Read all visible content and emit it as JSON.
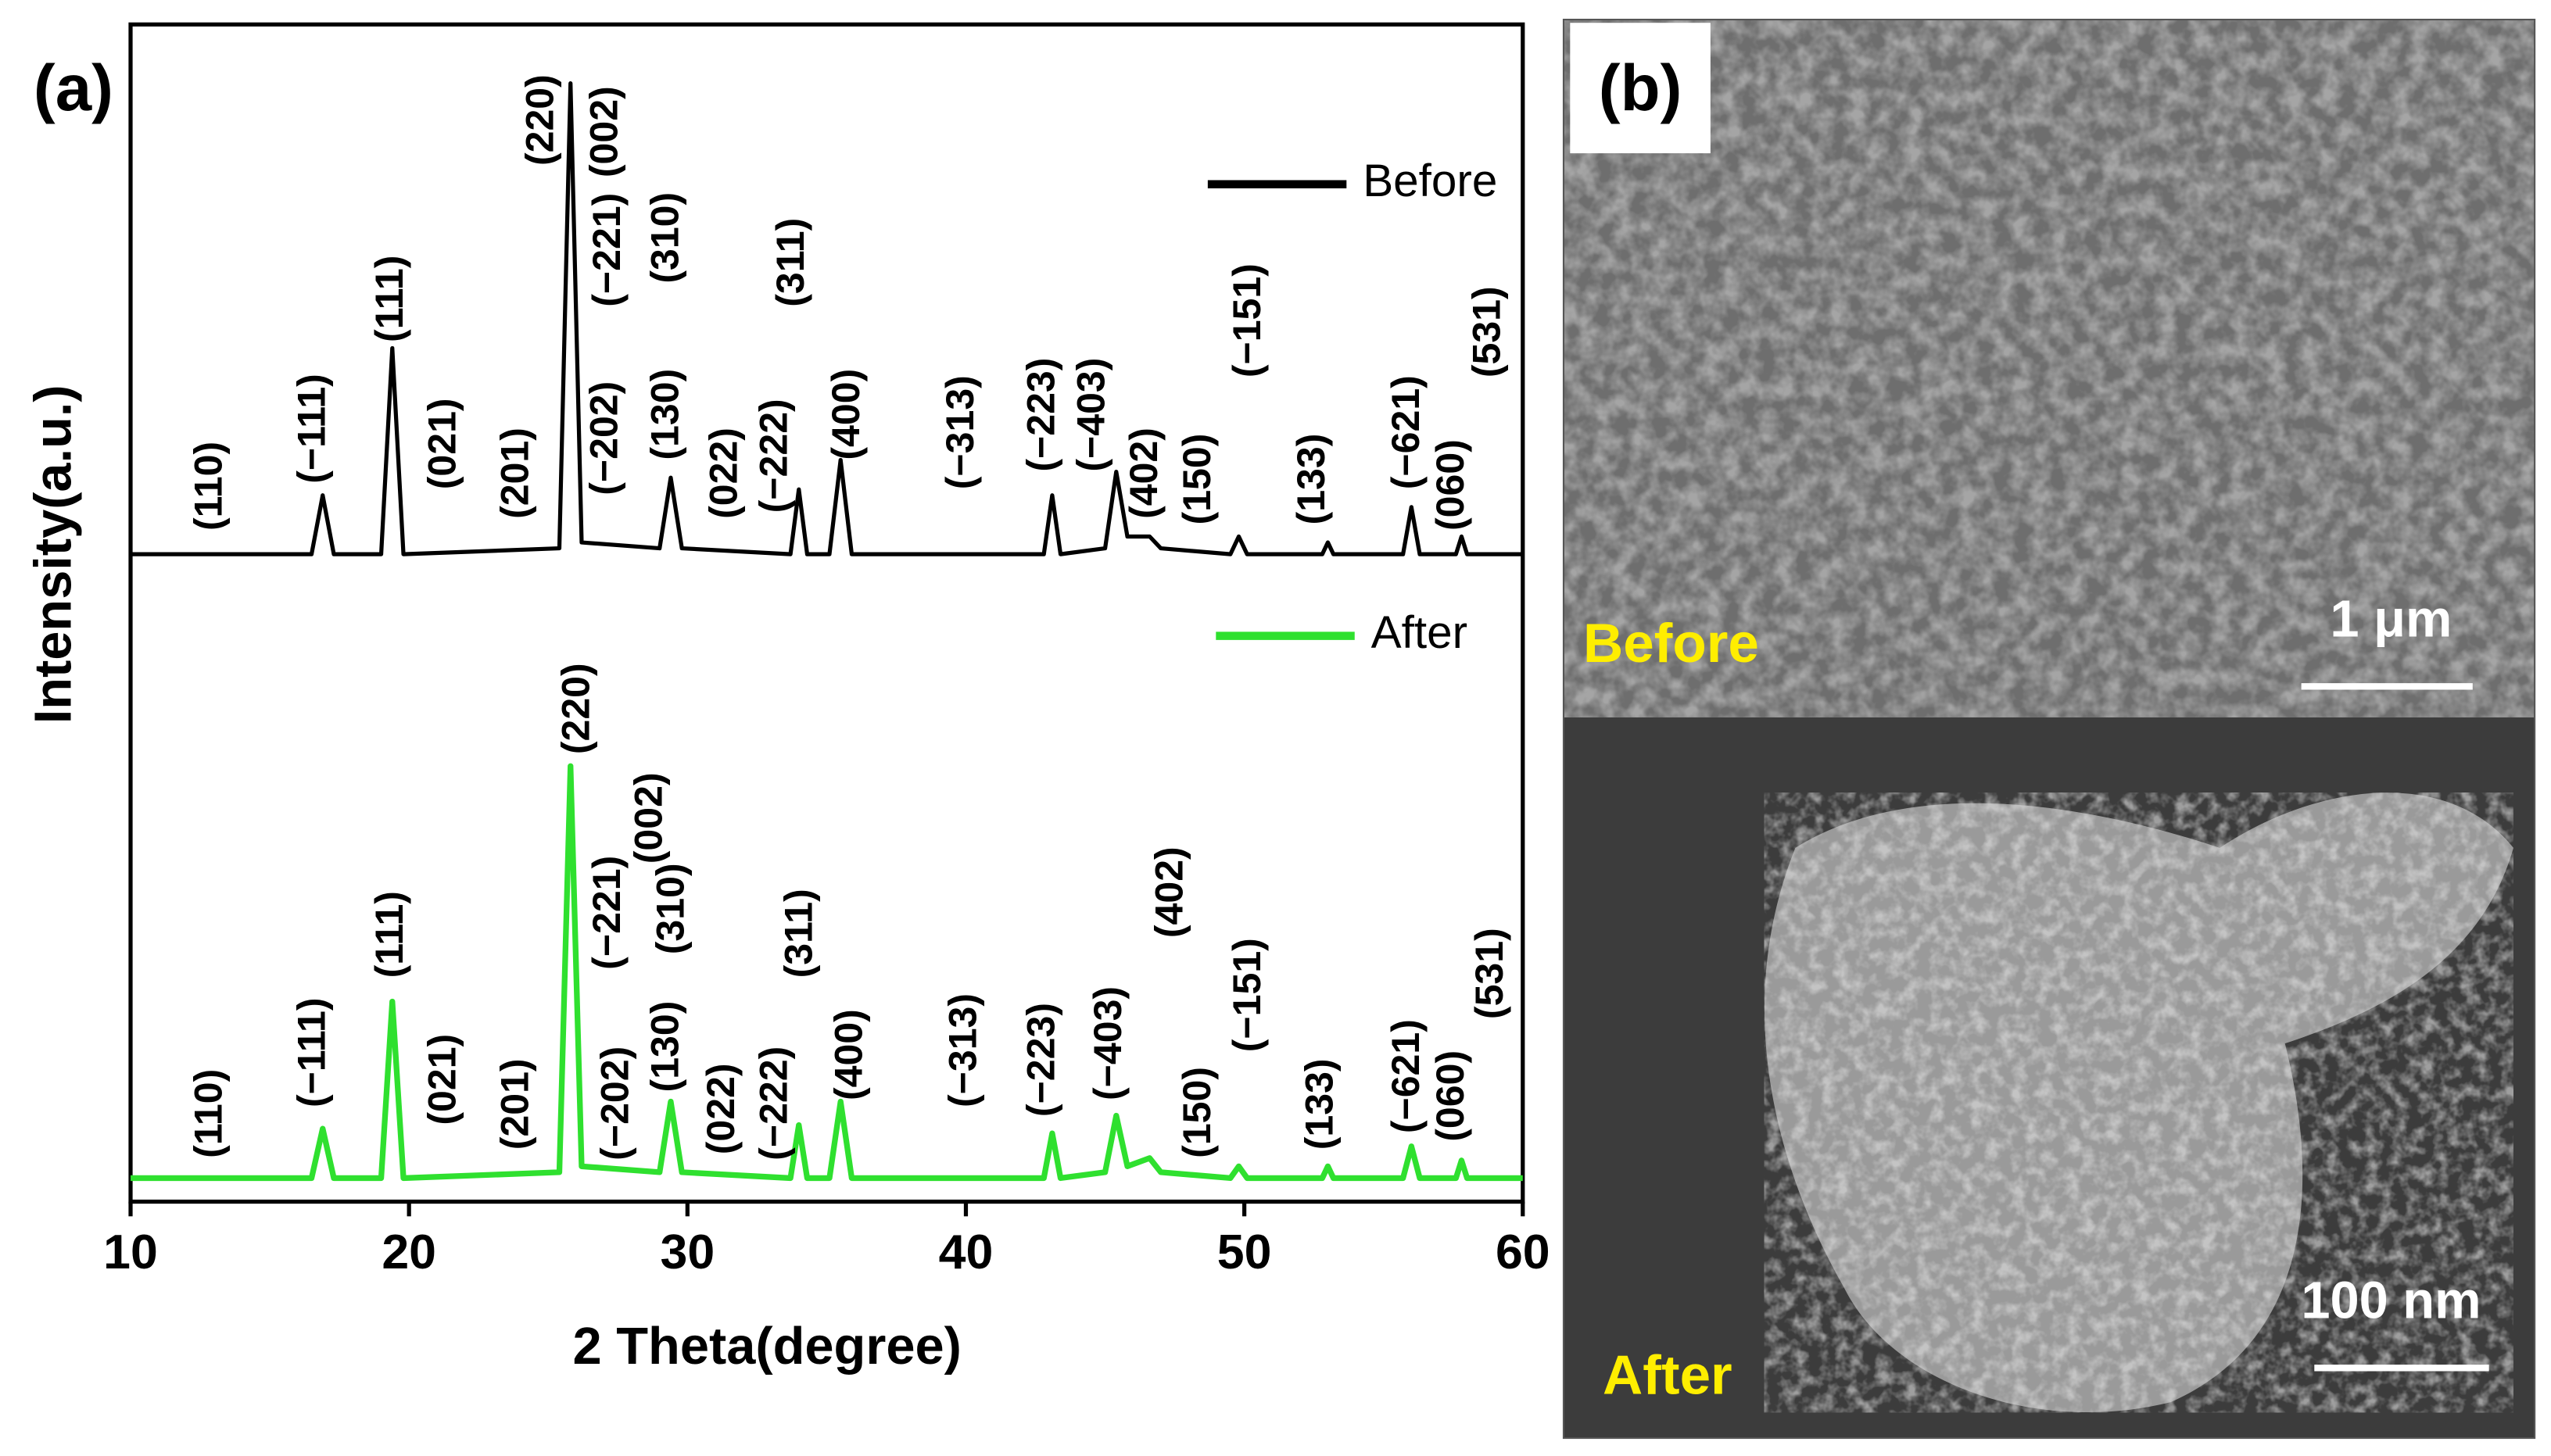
{
  "chart_data": {
    "type": "line",
    "panel_label": "(a)",
    "xlabel": "2 Theta(degree)",
    "ylabel": "Intensity(a.u.)",
    "xlim": [
      10,
      60
    ],
    "xticks": [
      10,
      20,
      30,
      40,
      50,
      60
    ],
    "ylim": [
      0,
      100
    ],
    "x": [
      10,
      16.5,
      16.9,
      17.3,
      19.0,
      19.4,
      19.8,
      25.4,
      25.8,
      26.2,
      29.0,
      29.4,
      29.8,
      33.7,
      34.0,
      34.3,
      35.1,
      35.5,
      35.9,
      42.8,
      43.1,
      43.4,
      45.0,
      45.4,
      45.8,
      46.6,
      47.0,
      49.5,
      49.8,
      50.1,
      52.8,
      53.0,
      53.2,
      55.7,
      56.0,
      56.3,
      57.6,
      57.8,
      58.0,
      60
    ],
    "series": [
      {
        "name": "Before",
        "color": "#000000",
        "values": [
          55,
          55,
          60,
          55,
          55,
          72.5,
          55,
          55.5,
          95,
          56,
          55.5,
          61.5,
          55.5,
          55,
          60.5,
          55,
          55,
          63,
          55,
          55,
          60,
          55,
          55.5,
          62,
          56.5,
          56.5,
          55.5,
          55,
          56.5,
          55,
          55,
          56,
          55,
          55,
          59,
          55,
          55,
          56.5,
          55,
          55
        ],
        "annotations": [
          {
            "text": "(110)",
            "x": 12.9,
            "y": 57
          },
          {
            "text": "(−111)",
            "x": 16.6,
            "y": 61
          },
          {
            "text": "(111)",
            "x": 19.4,
            "y": 73
          },
          {
            "text": "(021)",
            "x": 21.3,
            "y": 60.5
          },
          {
            "text": "(201)",
            "x": 23.9,
            "y": 58
          },
          {
            "text": "(220)",
            "x": 24.8,
            "y": 88
          },
          {
            "text": "(002)",
            "x": 27.1,
            "y": 87
          },
          {
            "text": "(−221)",
            "x": 27.2,
            "y": 76
          },
          {
            "text": "(−202)",
            "x": 27.1,
            "y": 60
          },
          {
            "text": "(310)",
            "x": 29.3,
            "y": 78
          },
          {
            "text": "(130)",
            "x": 29.3,
            "y": 63
          },
          {
            "text": "(022)",
            "x": 31.4,
            "y": 58
          },
          {
            "text": "(−222)",
            "x": 33.2,
            "y": 58.5
          },
          {
            "text": "(311)",
            "x": 33.8,
            "y": 76
          },
          {
            "text": "(400)",
            "x": 35.8,
            "y": 63
          },
          {
            "text": "(−313)",
            "x": 39.9,
            "y": 60.5
          },
          {
            "text": "(−223)",
            "x": 42.8,
            "y": 62
          },
          {
            "text": "(−403)",
            "x": 44.6,
            "y": 62
          },
          {
            "text": "(402)",
            "x": 46.5,
            "y": 58
          },
          {
            "text": "(150)",
            "x": 48.4,
            "y": 57.5
          },
          {
            "text": "(−151)",
            "x": 50.2,
            "y": 70
          },
          {
            "text": "(133)",
            "x": 52.5,
            "y": 57.5
          },
          {
            "text": "(−621)",
            "x": 55.9,
            "y": 60.5
          },
          {
            "text": "(060)",
            "x": 57.5,
            "y": 57
          },
          {
            "text": "(531)",
            "x": 58.8,
            "y": 70
          }
        ]
      },
      {
        "name": "After",
        "color": "#2fe02f",
        "values": [
          2,
          2,
          6.2,
          2,
          2,
          17,
          2,
          2.5,
          37,
          3,
          2.5,
          8.5,
          2.5,
          2,
          6.5,
          2,
          2,
          8.5,
          2,
          2,
          5.8,
          2,
          2.5,
          7.3,
          3,
          3.7,
          2.5,
          2,
          3,
          2,
          2,
          3,
          2,
          2,
          4.7,
          2,
          2,
          3.5,
          2,
          2
        ],
        "annotations": [
          {
            "text": "(110)",
            "x": 12.9,
            "y": 3.7
          },
          {
            "text": "(−111)",
            "x": 16.6,
            "y": 8
          },
          {
            "text": "(111)",
            "x": 19.4,
            "y": 19
          },
          {
            "text": "(021)",
            "x": 21.3,
            "y": 6.5
          },
          {
            "text": "(201)",
            "x": 23.9,
            "y": 4.4
          },
          {
            "text": "(220)",
            "x": 26.1,
            "y": 38
          },
          {
            "text": "(002)",
            "x": 28.7,
            "y": 28.7
          },
          {
            "text": "(−221)",
            "x": 27.2,
            "y": 19.7
          },
          {
            "text": "(−202)",
            "x": 27.5,
            "y": 3.5
          },
          {
            "text": "(310)",
            "x": 29.5,
            "y": 21
          },
          {
            "text": "(130)",
            "x": 29.3,
            "y": 9.3
          },
          {
            "text": "(022)",
            "x": 31.3,
            "y": 4
          },
          {
            "text": "(−222)",
            "x": 33.2,
            "y": 3.5
          },
          {
            "text": "(311)",
            "x": 34.1,
            "y": 19
          },
          {
            "text": "(400)",
            "x": 35.9,
            "y": 8.6
          },
          {
            "text": "(−313)",
            "x": 40,
            "y": 8
          },
          {
            "text": "(−223)",
            "x": 42.8,
            "y": 7.2
          },
          {
            "text": "(−403)",
            "x": 45.2,
            "y": 8.6
          },
          {
            "text": "(402)",
            "x": 47.4,
            "y": 22.4
          },
          {
            "text": "(150)",
            "x": 48.4,
            "y": 3.7
          },
          {
            "text": "(−151)",
            "x": 50.2,
            "y": 12.7
          },
          {
            "text": "(133)",
            "x": 52.8,
            "y": 4.4
          },
          {
            "text": "(−621)",
            "x": 55.9,
            "y": 5.8
          },
          {
            "text": "(060)",
            "x": 57.5,
            "y": 5.1
          },
          {
            "text": "(531)",
            "x": 58.9,
            "y": 15.5
          }
        ]
      }
    ]
  },
  "sem": {
    "panel_label": "(b)",
    "panels": [
      {
        "label": "Before",
        "scale": "1 μm"
      },
      {
        "label": "After",
        "scale": "100 nm"
      }
    ]
  }
}
